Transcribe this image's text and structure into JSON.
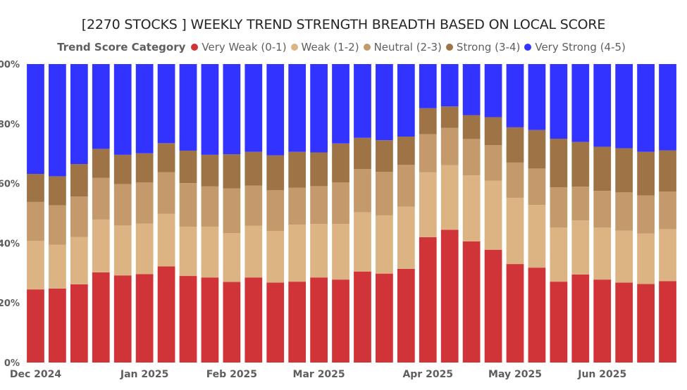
{
  "chart_data": {
    "type": "bar",
    "stacked": "percent",
    "title": "[2270 STOCKS ] WEEKLY TREND STRENGTH BREADTH BASED ON LOCAL SCORE",
    "legend_title": "Trend Score Category",
    "legend_position": "top-center",
    "y_ticks": [
      "0%",
      "20%",
      "40%",
      "60%",
      "80%",
      "100%"
    ],
    "ylim": [
      0,
      100
    ],
    "x_month_labels": [
      {
        "label": "Dec 2024",
        "bar_index": 0
      },
      {
        "label": "Jan 2025",
        "bar_index": 5
      },
      {
        "label": "Feb 2025",
        "bar_index": 9
      },
      {
        "label": "Mar 2025",
        "bar_index": 13
      },
      {
        "label": "Apr 2025",
        "bar_index": 18
      },
      {
        "label": "May 2025",
        "bar_index": 22
      },
      {
        "label": "Jun 2025",
        "bar_index": 26
      }
    ],
    "num_bars": 30,
    "series": [
      {
        "name": "Very Weak (0-1)",
        "color": "#d13438",
        "values": [
          24.5,
          24.8,
          26.2,
          30.2,
          29.2,
          29.6,
          32.2,
          29.0,
          28.5,
          27.0,
          28.5,
          26.8,
          27.1,
          28.5,
          27.8,
          30.5,
          29.8,
          31.4,
          42.0,
          44.5,
          40.6,
          37.8,
          33.0,
          31.8,
          27.1,
          29.5,
          27.8,
          26.8,
          26.3,
          27.3
        ]
      },
      {
        "name": "Weak (1-2)",
        "color": "#dcb483",
        "values": [
          16.3,
          14.7,
          15.9,
          17.7,
          16.7,
          16.9,
          17.6,
          16.5,
          17.0,
          16.4,
          17.3,
          17.3,
          19.1,
          17.9,
          18.6,
          19.8,
          19.5,
          20.8,
          21.8,
          21.6,
          22.1,
          23.1,
          22.2,
          21.0,
          18.1,
          18.1,
          17.4,
          17.4,
          16.9,
          17.4
        ]
      },
      {
        "name": "Neutral (2-3)",
        "color": "#c49a6c",
        "values": [
          13.0,
          13.2,
          13.5,
          14.0,
          13.9,
          13.8,
          14.0,
          14.6,
          13.5,
          14.9,
          13.5,
          13.6,
          12.4,
          12.7,
          13.9,
          14.5,
          14.6,
          14.0,
          12.7,
          12.5,
          12.2,
          11.9,
          11.8,
          12.2,
          13.5,
          11.3,
          12.3,
          12.8,
          12.8,
          12.6
        ]
      },
      {
        "name": "Strong (3-4)",
        "color": "#9e7446",
        "values": [
          9.4,
          9.7,
          10.9,
          9.7,
          9.8,
          9.8,
          9.7,
          10.9,
          10.6,
          11.5,
          11.3,
          11.7,
          12.0,
          11.3,
          13.1,
          10.5,
          10.6,
          9.5,
          8.7,
          7.2,
          8.0,
          9.4,
          11.8,
          12.9,
          16.3,
          15.0,
          14.8,
          14.8,
          14.6,
          13.8
        ]
      },
      {
        "name": "Very Strong (4-5)",
        "color": "#3333ff",
        "values": [
          36.8,
          37.6,
          33.5,
          28.4,
          30.4,
          29.9,
          26.5,
          29.0,
          30.4,
          30.2,
          29.4,
          30.6,
          29.4,
          29.6,
          26.6,
          24.7,
          25.5,
          24.3,
          14.8,
          14.2,
          17.1,
          17.8,
          21.2,
          22.1,
          25.0,
          26.1,
          27.7,
          28.2,
          29.4,
          28.9
        ]
      }
    ]
  }
}
